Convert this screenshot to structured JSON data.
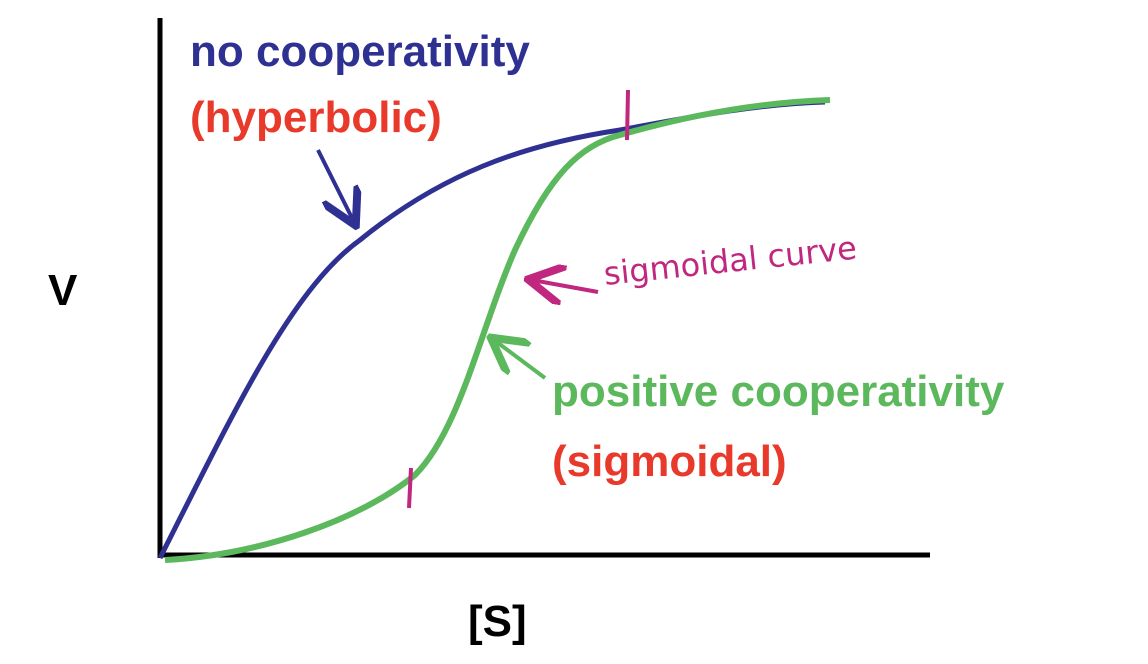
{
  "labels": {
    "hyperbolic_title": "no cooperativity",
    "hyperbolic_subtitle": "(hyperbolic)",
    "sigmoidal_title": "positive cooperativity",
    "sigmoidal_subtitle": "(sigmoidal)",
    "annotation": "sigmoidal curve",
    "y_axis": "V",
    "x_axis": "[S]"
  }
}
